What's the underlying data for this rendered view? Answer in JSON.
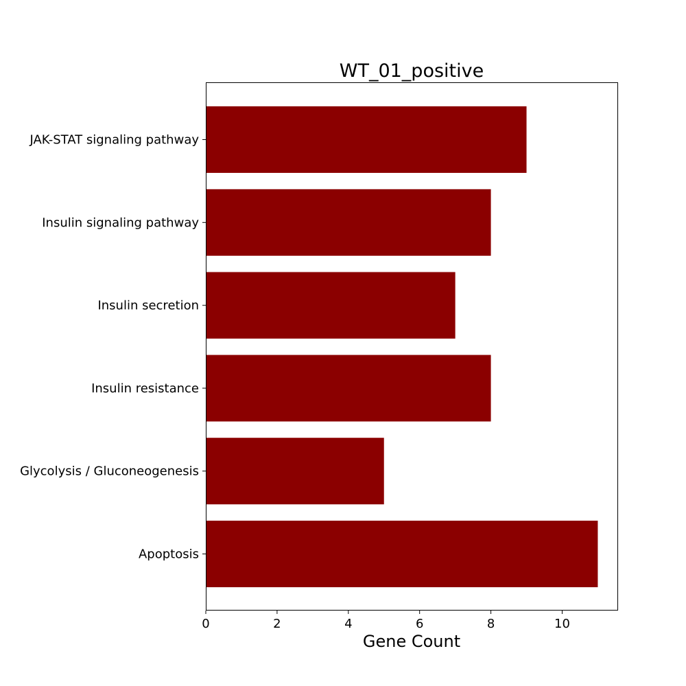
{
  "chart_data": {
    "type": "bar",
    "orientation": "horizontal",
    "title": "WT_01_positive",
    "xlabel": "Gene Count",
    "ylabel": "",
    "categories": [
      "JAK-STAT signaling pathway",
      "Insulin signaling pathway",
      "Insulin secretion",
      "Insulin resistance",
      "Glycolysis / Gluconeogenesis",
      "Apoptosis"
    ],
    "values": [
      9,
      8,
      7,
      8,
      5,
      11
    ],
    "xlim": [
      0,
      11.55
    ],
    "xticks": [
      0,
      2,
      4,
      6,
      8,
      10
    ],
    "bar_color": "#8b0000",
    "grid": false,
    "legend": "none"
  }
}
